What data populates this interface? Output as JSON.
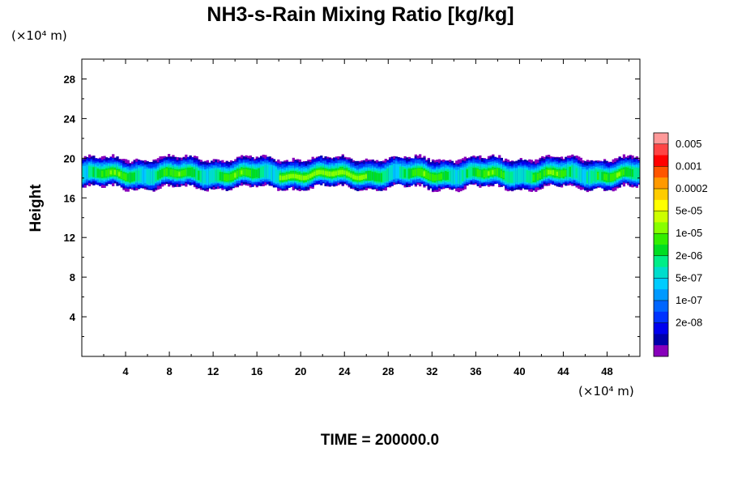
{
  "chart_data": {
    "type": "heatmap",
    "title": "NH3-s-Rain Mixing Ratio [kg/kg]",
    "ylabel": "Height",
    "x_unit": "(×10⁴ m)",
    "y_unit": "(×10⁴ m)",
    "xlim": [
      0,
      51
    ],
    "ylim": [
      0,
      30
    ],
    "x_ticks": [
      "4",
      "8",
      "12",
      "16",
      "20",
      "24",
      "28",
      "32",
      "36",
      "40",
      "44",
      "48"
    ],
    "x_tick_values": [
      4,
      8,
      12,
      16,
      20,
      24,
      28,
      32,
      36,
      40,
      44,
      48
    ],
    "y_ticks": [
      "4",
      "8",
      "12",
      "16",
      "20",
      "24",
      "28"
    ],
    "y_tick_values": [
      4,
      8,
      12,
      16,
      20,
      24,
      28
    ],
    "colorbar": {
      "labels": [
        "0.005",
        "0.001",
        "0.0002",
        "5e-05",
        "1e-05",
        "2e-06",
        "5e-07",
        "1e-07",
        "2e-08"
      ],
      "colors": [
        "#ff9999",
        "#ff4444",
        "#ff0000",
        "#ff5500",
        "#ff9900",
        "#ffcc00",
        "#ffff00",
        "#ccff00",
        "#88ff00",
        "#33ee00",
        "#00dd22",
        "#00ee88",
        "#00ddcc",
        "#00ccff",
        "#0099ff",
        "#0066ff",
        "#0033ff",
        "#0000ee",
        "#0000aa",
        "#8800bb"
      ]
    },
    "layer": {
      "bottom_height": 17,
      "top_height": 20,
      "x_extent": [
        0,
        51
      ],
      "peak_region_x": [
        18,
        26
      ],
      "peak_range": "1e-05 to 5e-05"
    },
    "footer": "TIME = 200000.0"
  }
}
